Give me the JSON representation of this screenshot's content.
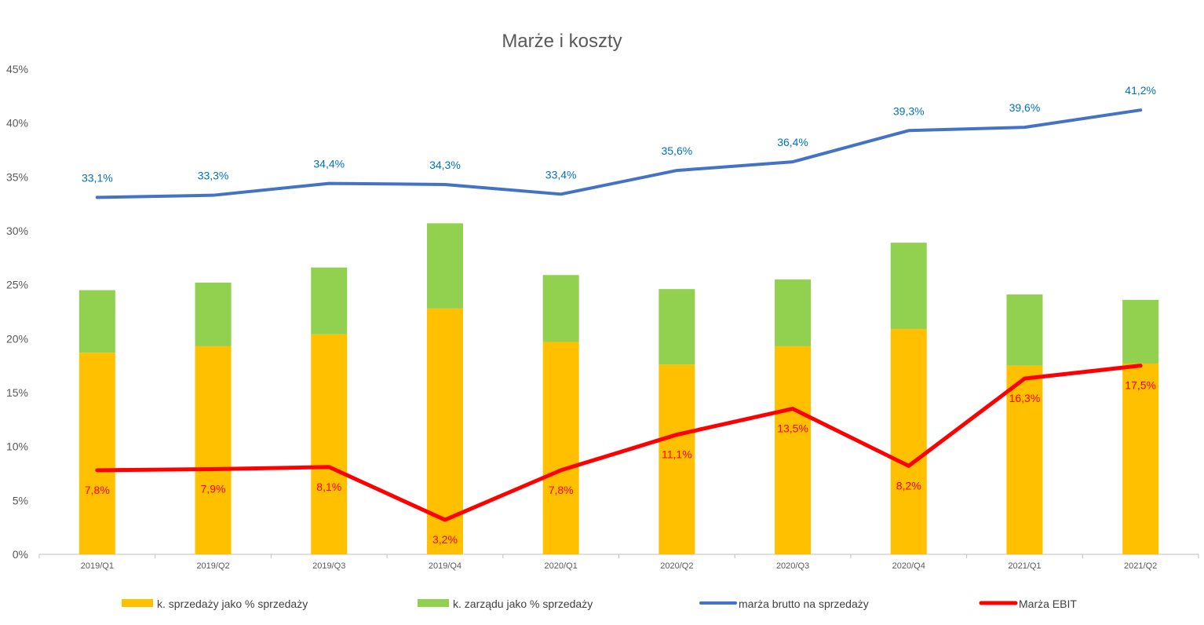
{
  "chart_data": {
    "type": "bar",
    "title": "Marże i koszty",
    "xlabel": "",
    "ylabel": "",
    "ylim": [
      0,
      45
    ],
    "y_tick_labels": [
      "0%",
      "5%",
      "10%",
      "15%",
      "20%",
      "25%",
      "30%",
      "35%",
      "40%",
      "45%"
    ],
    "categories": [
      "2019/Q1",
      "2019/Q2",
      "2019/Q3",
      "2019/Q4",
      "2020/Q1",
      "2020/Q2",
      "2020/Q3",
      "2020/Q4",
      "2021/Q1",
      "2021/Q2"
    ],
    "legend_position": "bottom",
    "grid": false,
    "series": [
      {
        "name": "k. sprzedaży jako % sprzedaży",
        "type": "bar",
        "stack": "costs",
        "color": "#ffc000",
        "values": [
          18.7,
          19.3,
          20.4,
          22.8,
          19.7,
          17.6,
          19.3,
          20.9,
          17.5,
          17.7
        ]
      },
      {
        "name": "k. zarządu jako % sprzedaży",
        "type": "bar",
        "stack": "costs",
        "color": "#92d050",
        "values": [
          5.8,
          5.9,
          6.2,
          7.9,
          6.2,
          7.0,
          6.2,
          8.0,
          6.6,
          5.9
        ]
      },
      {
        "name": "marża brutto na sprzedaży",
        "type": "line",
        "color": "#4472c4",
        "label_color": "#0070c0",
        "values": [
          33.1,
          33.3,
          34.4,
          34.3,
          33.4,
          35.6,
          36.4,
          39.3,
          39.6,
          41.2
        ],
        "labels": [
          "33,1%",
          "33,3%",
          "34,4%",
          "34,3%",
          "33,4%",
          "35,6%",
          "36,4%",
          "39,3%",
          "39,6%",
          "41,2%"
        ]
      },
      {
        "name": "Marża EBIT",
        "type": "line",
        "color": "#ff0000",
        "label_color": "#ff0000",
        "values": [
          7.8,
          7.9,
          8.1,
          3.2,
          7.8,
          11.1,
          13.5,
          8.2,
          16.3,
          17.5
        ],
        "labels": [
          "7,8%",
          "7,9%",
          "8,1%",
          "3,2%",
          "7,8%",
          "11,1%",
          "13,5%",
          "8,2%",
          "16,3%",
          "17,5%"
        ]
      }
    ]
  }
}
